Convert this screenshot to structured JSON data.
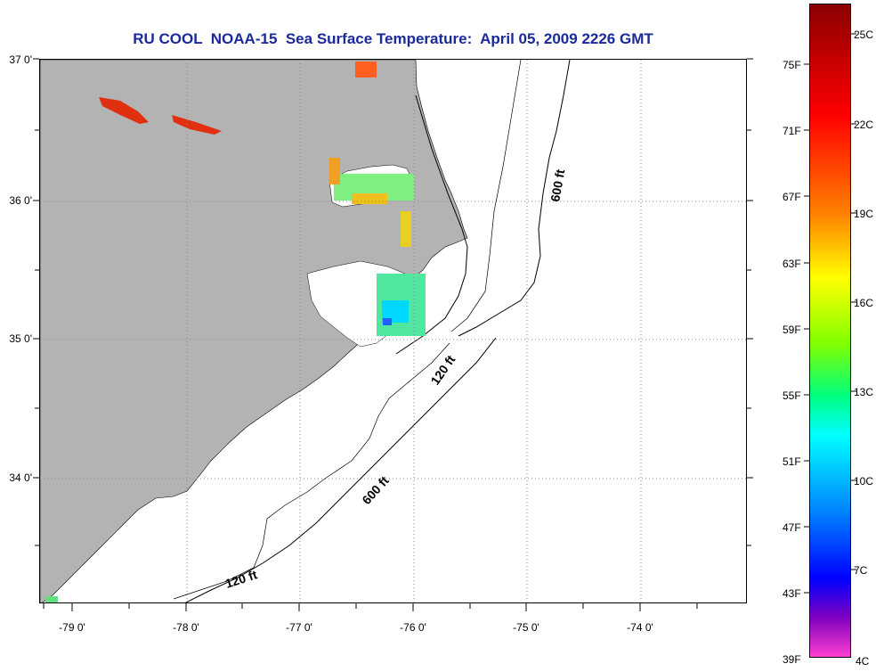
{
  "title": "RU COOL  NOAA-15  Sea Surface Temperature:  April 05, 2009 2226 GMT",
  "map": {
    "latitude_labels": [
      "37 0'",
      "36 0'",
      "35 0'",
      "34 0'"
    ],
    "longitude_labels": [
      "-79 0'",
      "-78 0'",
      "-77 0'",
      "-76 0'",
      "-75 0'",
      "-74 0'"
    ],
    "contour_labels": [
      "600 ft",
      "120 ft",
      "600 ft",
      "120 ft"
    ],
    "land_color": "#b3b3b3",
    "ocean_color": "#ffffff"
  },
  "colorbar": {
    "fahrenheit_labels": [
      "75F",
      "71F",
      "67F",
      "63F",
      "59F",
      "55F",
      "51F",
      "47F",
      "43F",
      "39F"
    ],
    "celsius_labels": [
      "25C",
      "22C",
      "19C",
      "16C",
      "13C",
      "10C",
      "7C",
      "4C"
    ],
    "gradient_colors": [
      "#8b0000",
      "#ff0000",
      "#ff8000",
      "#ffff00",
      "#80ff00",
      "#00ff80",
      "#00ffff",
      "#0080ff",
      "#0000ff",
      "#8000c0",
      "#ff40d0"
    ]
  }
}
